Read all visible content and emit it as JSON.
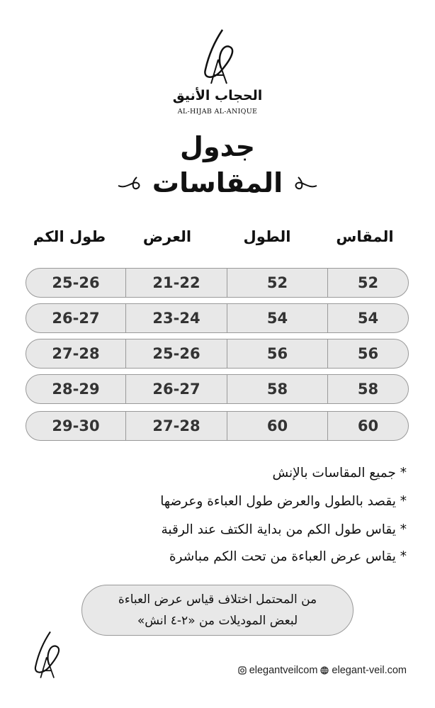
{
  "brand": {
    "name_ar": "الحجاب الأنيق",
    "name_en": "AL-HIJAB AL-ANIQUE"
  },
  "title": {
    "line1": "جدول",
    "line2": "المقاسات"
  },
  "table": {
    "headers": [
      "المقاس",
      "الطول",
      "العرض",
      "طول الكم"
    ],
    "rows": [
      {
        "size": "52",
        "length": "52",
        "width": "21-22",
        "sleeve": "25-26"
      },
      {
        "size": "54",
        "length": "54",
        "width": "23-24",
        "sleeve": "26-27"
      },
      {
        "size": "56",
        "length": "56",
        "width": "25-26",
        "sleeve": "27-28"
      },
      {
        "size": "58",
        "length": "58",
        "width": "26-27",
        "sleeve": "28-29"
      },
      {
        "size": "60",
        "length": "60",
        "width": "27-28",
        "sleeve": "29-30"
      }
    ]
  },
  "notes": [
    "جميع المقاسات بالإنش",
    "يقصد بالطول والعرض طول العباءة وعرضها",
    "يقاس طول الكم من بداية الكتف عند الرقبة",
    "يقاس عرض العباءة من تحت الكم مباشرة"
  ],
  "bullet": "*",
  "disclaimer": {
    "line1": "من المحتمل اختلاف قياس عرض العباءة",
    "line2": "لبعض الموديلات من «٢-٤ انش»"
  },
  "footer": {
    "instagram": "elegantveilcom",
    "website": "elegant-veil.com",
    "instagram_icon": "instagram-icon",
    "web_icon": "globe-icon"
  }
}
